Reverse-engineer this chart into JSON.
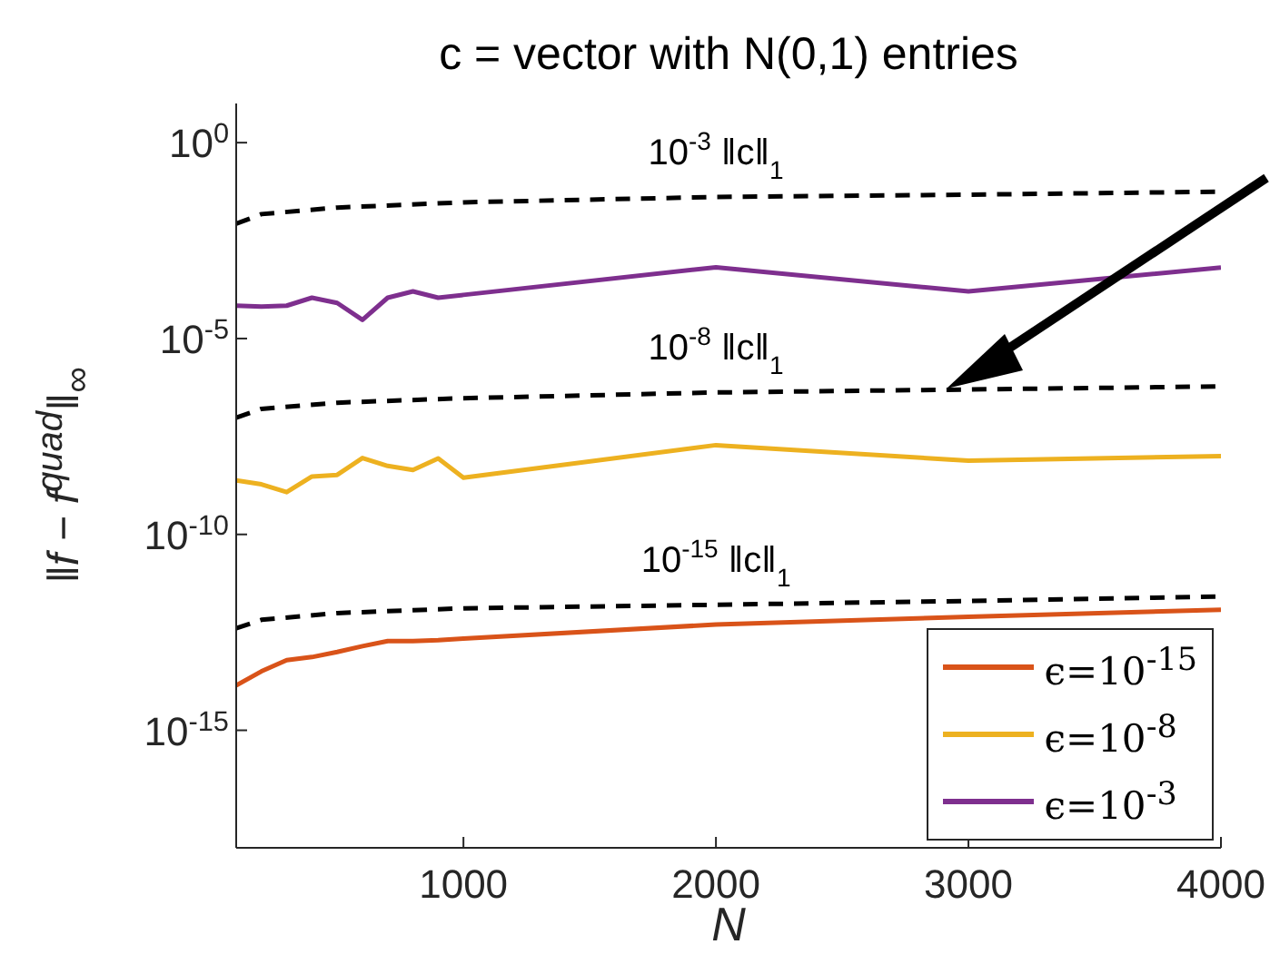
{
  "chart_data": {
    "type": "line",
    "title": "c = vector with N(0,1) entries",
    "xlabel": "N",
    "ylabel": "‖f − f$^{quad}$‖$_{∞}$",
    "log": "y",
    "xlim": [
      100,
      4000
    ],
    "xticks": [
      1000,
      2000,
      3000,
      4000
    ],
    "ylim": [
      1e-18,
      10
    ],
    "yticks": [
      {
        "value": 1,
        "label": "10$^{0}$"
      },
      {
        "value": 1e-05,
        "label": "10$^{-5}$"
      },
      {
        "value": 1e-10,
        "label": "10$^{-10}$"
      },
      {
        "value": 1e-15,
        "label": "10$^{-15}$"
      }
    ],
    "grid": false,
    "legend": "bottom right",
    "marker": "none",
    "line_style": "solid",
    "x": [
      100,
      200,
      300,
      400,
      500,
      600,
      700,
      800,
      900,
      1000,
      2000,
      3000,
      4000
    ],
    "series": [
      {
        "name": "ϵ=10$^{-15}$",
        "color": "#d95319",
        "values": [
          1.4e-14,
          3.2e-14,
          6.2e-14,
          7.4e-14,
          1e-13,
          1.4e-13,
          1.9e-13,
          1.9e-13,
          2e-13,
          2.2e-13,
          5e-13,
          7.9e-13,
          1.2e-12
        ]
      },
      {
        "name": "ϵ=10$^{-8}$",
        "color": "#edb120",
        "values": [
          2.4e-09,
          1.9e-09,
          1.2e-09,
          3e-09,
          3.3e-09,
          8.9e-09,
          5.6e-09,
          4.4e-09,
          8.7e-09,
          2.8e-09,
          1.9e-08,
          7.6e-09,
          1e-08
        ]
      },
      {
        "name": "ϵ=10$^{-3}$",
        "color": "#7e2f8e",
        "values": [
          6.9e-05,
          6.5e-05,
          6.9e-05,
          0.00011,
          8.1e-05,
          3e-05,
          0.00011,
          0.00016,
          0.00011,
          0.00013,
          0.00066,
          0.00016,
          0.00065
        ]
      },
      {
        "name": "10$^{-3}$ ‖c‖$_{1}$",
        "color": "#000000",
        "line_style": "dashed",
        "x": [
          100,
          200,
          500,
          1000,
          2000,
          3000,
          4000
        ],
        "values": [
          0.0085,
          0.015,
          0.022,
          0.03,
          0.041,
          0.047,
          0.056
        ]
      },
      {
        "name": "10$^{-8}$ ‖c‖$_{1}$",
        "color": "#000000",
        "line_style": "dashed",
        "x": [
          100,
          200,
          500,
          1000,
          2000,
          3000,
          4000
        ],
        "values": [
          9.5e-08,
          1.6e-07,
          2.3e-07,
          3e-07,
          4.2e-07,
          5e-07,
          6e-07
        ]
      },
      {
        "name": "10$^{-15}$ ‖c‖$_{1}$",
        "color": "#000000",
        "line_style": "dashed",
        "x": [
          100,
          200,
          500,
          1000,
          2000,
          3000,
          4000
        ],
        "values": [
          4e-13,
          6.6e-13,
          9.8e-13,
          1.3e-12,
          1.6e-12,
          2e-12,
          2.6e-12
        ]
      }
    ]
  }
}
